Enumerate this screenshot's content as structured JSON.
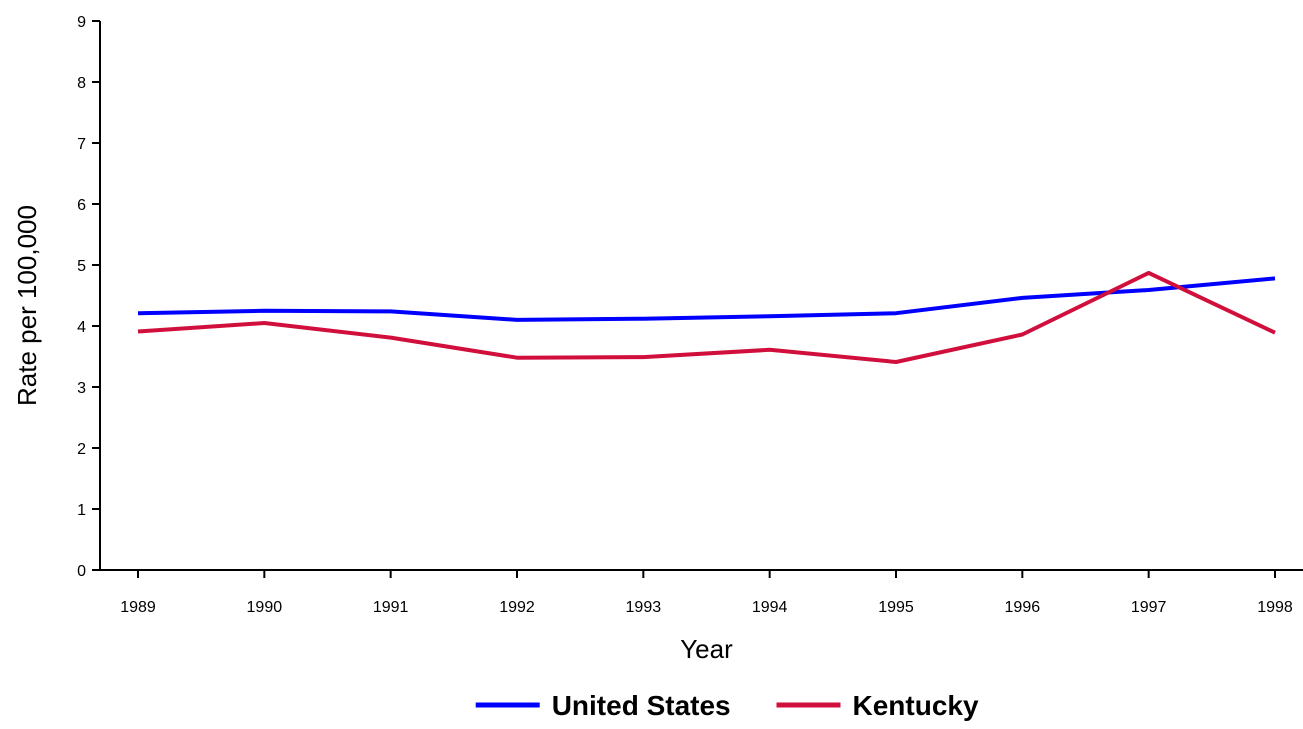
{
  "chart_data": {
    "type": "line",
    "xlabel": "Year",
    "ylabel": "Rate per 100,000",
    "ylim": [
      0,
      9
    ],
    "yticks": [
      "0",
      "1",
      "2",
      "3",
      "4",
      "5",
      "6",
      "7",
      "8",
      "9"
    ],
    "x": [
      "1989",
      "1990",
      "1991",
      "1992",
      "1993",
      "1994",
      "1995",
      "1996",
      "1997",
      "1998"
    ],
    "series": [
      {
        "name": "United States",
        "color": "#0000ff",
        "values": [
          4.21,
          4.25,
          4.24,
          4.1,
          4.12,
          4.16,
          4.21,
          4.46,
          4.59,
          4.78
        ]
      },
      {
        "name": "Kentucky",
        "color": "#d10f3c",
        "values": [
          3.91,
          4.05,
          3.81,
          3.48,
          3.49,
          3.61,
          3.41,
          3.86,
          4.87,
          3.89
        ]
      }
    ],
    "grid": false,
    "legend": "bottom-center"
  }
}
